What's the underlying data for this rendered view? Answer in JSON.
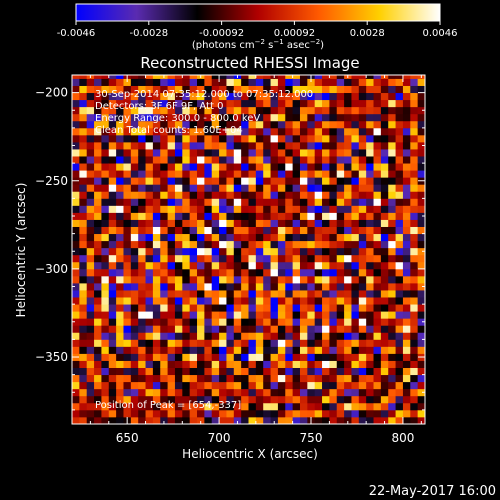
{
  "colorbar": {
    "ticks": [
      "-0.0046",
      "-0.0028",
      "-0.00092",
      "0.00092",
      "0.0028",
      "0.0046"
    ],
    "min": -0.0046,
    "max": 0.0046,
    "colors": [
      "#0000ff",
      "#5a2bb0",
      "#000000",
      "#b00000",
      "#ff5a00",
      "#ffd000",
      "#ffffff"
    ]
  },
  "unit_label": {
    "prefix": "(photons cm",
    "exp1": "−2",
    "mid1": " s",
    "exp2": "−1",
    "mid2": " asec",
    "exp3": "−2",
    "suffix": ")"
  },
  "chart_data": {
    "type": "heatmap",
    "title": "Reconstructed RHESSI Image",
    "xlabel": "Heliocentric X (arcsec)",
    "ylabel": "Heliocentric Y (arcsec)",
    "xlim": [
      620,
      812
    ],
    "ylim": [
      -388,
      -190
    ],
    "xticks": [
      650,
      700,
      750,
      800
    ],
    "xtick_labels": [
      "650",
      "700",
      "750",
      "800"
    ],
    "yticks": [
      -200,
      -250,
      -300,
      -350
    ],
    "ytick_labels": [
      "−200",
      "−250",
      "−300",
      "−350"
    ],
    "grid": false,
    "annotations": [
      "30-Sep-2014 07:35:12.000 to 07:35:12.000",
      "Detectors: 3F 6F 9F, Att 0",
      "Energy Range: 300.0 - 800.0 keV",
      "Clean    Total counts: 1.60E+04"
    ],
    "peak_label": "Position of Peak = [654,-337]",
    "peak": [
      654,
      -337
    ]
  },
  "footer": {
    "date": "22-May-2017 16:00"
  }
}
